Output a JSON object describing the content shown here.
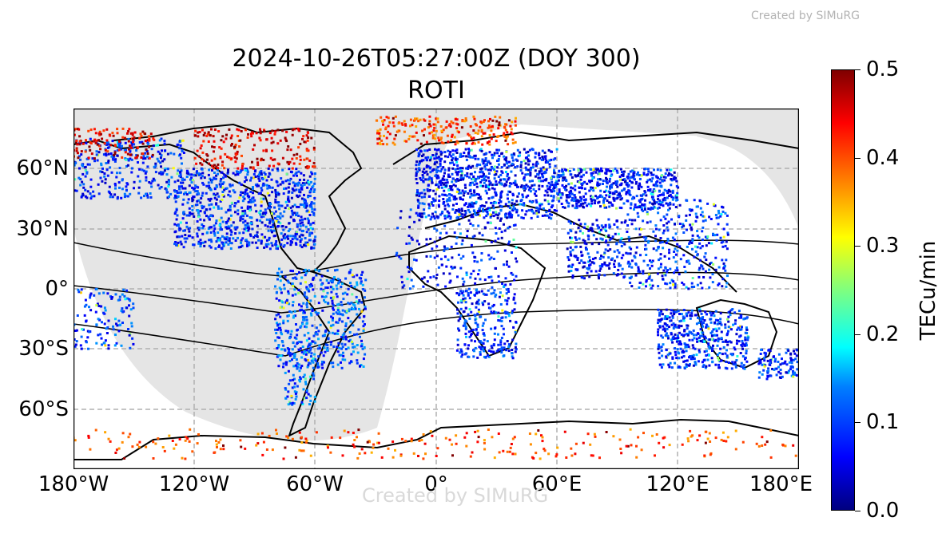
{
  "watermark_top": "Created by SIMuRG",
  "watermark_bottom": "Created by SIMuRG",
  "title_line1": "2024-10-26T05:27:00Z (DOY 300)",
  "title_line2": "ROTI",
  "colorbar": {
    "label": "TECu/min",
    "colormap": "jet",
    "ticks": [
      "0.0",
      "0.1",
      "0.2",
      "0.3",
      "0.4",
      "0.5"
    ],
    "min": 0.0,
    "max": 0.5
  },
  "map": {
    "projection": "PlateCarree",
    "lon_range": [
      -180,
      180
    ],
    "lat_range": [
      -90,
      90
    ],
    "x_ticks": [
      "180°W",
      "120°W",
      "60°W",
      "0°",
      "60°E",
      "120°E",
      "180°E"
    ],
    "y_ticks": [
      "60°N",
      "30°N",
      "0°",
      "30°S",
      "60°S"
    ],
    "gridlines": true,
    "night_shading_color": "#e5e5e5",
    "coastline_color": "#000000"
  },
  "chart_data": {
    "type": "scatter",
    "title": "2024-10-26T05:27:00Z (DOY 300)\nROTI",
    "xlabel": "",
    "ylabel": "",
    "xlim": [
      -180,
      180
    ],
    "ylim": [
      -90,
      90
    ],
    "color_scale": {
      "label": "TECu/min",
      "range": [
        0.0,
        0.5
      ]
    },
    "regions": [
      {
        "lon": [
          -180,
          -125
        ],
        "lat": [
          45,
          75
        ],
        "value": 0.08,
        "density": 300
      },
      {
        "lon": [
          -130,
          -60
        ],
        "lat": [
          20,
          60
        ],
        "value": 0.08,
        "density": 900
      },
      {
        "lon": [
          -180,
          -140
        ],
        "lat": [
          65,
          80
        ],
        "value": 0.45,
        "density": 120
      },
      {
        "lon": [
          -120,
          -60
        ],
        "lat": [
          60,
          80
        ],
        "value": 0.45,
        "density": 200
      },
      {
        "lon": [
          -80,
          -35
        ],
        "lat": [
          -40,
          10
        ],
        "value": 0.1,
        "density": 500
      },
      {
        "lon": [
          -75,
          -60
        ],
        "lat": [
          -58,
          -30
        ],
        "value": 0.1,
        "density": 80
      },
      {
        "lon": [
          -10,
          60
        ],
        "lat": [
          35,
          70
        ],
        "value": 0.07,
        "density": 900
      },
      {
        "lon": [
          -30,
          40
        ],
        "lat": [
          72,
          86
        ],
        "value": 0.4,
        "density": 220
      },
      {
        "lon": [
          60,
          120
        ],
        "lat": [
          40,
          60
        ],
        "value": 0.07,
        "density": 500
      },
      {
        "lon": [
          -20,
          40
        ],
        "lat": [
          0,
          40
        ],
        "value": 0.07,
        "density": 200
      },
      {
        "lon": [
          10,
          40
        ],
        "lat": [
          -35,
          0
        ],
        "value": 0.08,
        "density": 250
      },
      {
        "lon": [
          65,
          95
        ],
        "lat": [
          5,
          35
        ],
        "value": 0.07,
        "density": 200
      },
      {
        "lon": [
          95,
          145
        ],
        "lat": [
          0,
          45
        ],
        "value": 0.08,
        "density": 350
      },
      {
        "lon": [
          110,
          155
        ],
        "lat": [
          -40,
          -10
        ],
        "value": 0.08,
        "density": 450
      },
      {
        "lon": [
          160,
          180
        ],
        "lat": [
          -45,
          -30
        ],
        "value": 0.08,
        "density": 100
      },
      {
        "lon": [
          -180,
          180
        ],
        "lat": [
          -85,
          -70
        ],
        "value": 0.4,
        "density": 260
      },
      {
        "lon": [
          -180,
          -150
        ],
        "lat": [
          -30,
          0
        ],
        "value": 0.09,
        "density": 120
      }
    ]
  }
}
